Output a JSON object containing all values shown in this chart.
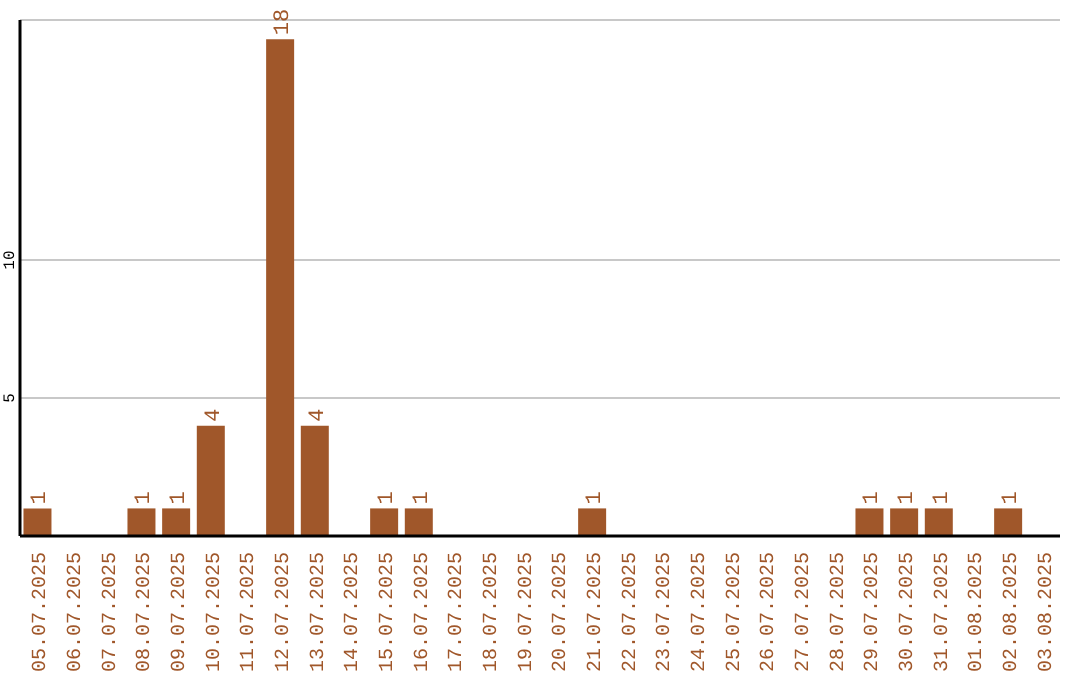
{
  "chart_data": {
    "type": "bar",
    "categories": [
      "05.07.2025",
      "06.07.2025",
      "07.07.2025",
      "08.07.2025",
      "09.07.2025",
      "10.07.2025",
      "11.07.2025",
      "12.07.2025",
      "13.07.2025",
      "14.07.2025",
      "15.07.2025",
      "16.07.2025",
      "17.07.2025",
      "18.07.2025",
      "19.07.2025",
      "20.07.2025",
      "21.07.2025",
      "22.07.2025",
      "23.07.2025",
      "24.07.2025",
      "25.07.2025",
      "26.07.2025",
      "27.07.2025",
      "28.07.2025",
      "29.07.2025",
      "30.07.2025",
      "31.07.2025",
      "01.08.2025",
      "02.08.2025",
      "03.08.2025"
    ],
    "values": [
      1,
      0,
      0,
      1,
      1,
      4,
      0,
      18,
      4,
      0,
      1,
      1,
      0,
      0,
      0,
      0,
      1,
      0,
      0,
      0,
      0,
      0,
      0,
      0,
      1,
      1,
      1,
      0,
      1,
      0
    ],
    "value_labels": [
      "1",
      null,
      null,
      "1",
      "1",
      "4",
      null,
      "18",
      "4",
      null,
      "1",
      "1",
      null,
      null,
      null,
      null,
      "1",
      null,
      null,
      null,
      null,
      null,
      null,
      null,
      "1",
      "1",
      "1",
      null,
      "1",
      null
    ],
    "color": "#a0572a",
    "ylim": [
      0,
      18.7
    ],
    "yticks": [
      5,
      10
    ],
    "grid": "y"
  }
}
